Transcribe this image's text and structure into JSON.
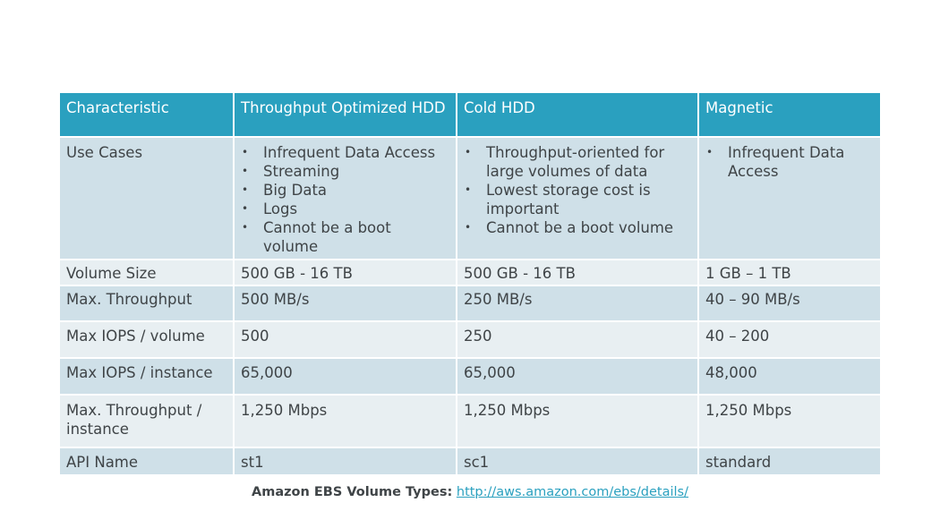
{
  "table": {
    "headers": [
      "Characteristic",
      "Throughput Optimized HDD",
      "Cold HDD",
      "Magnetic"
    ],
    "use_cases": {
      "label": "Use Cases",
      "throughput_optimized": [
        "Infrequent Data Access",
        "Streaming",
        "Big Data",
        "Logs",
        "Cannot be a boot volume"
      ],
      "cold_hdd": [
        "Throughput-oriented for large volumes of data",
        "Lowest storage cost is important",
        "Cannot be a boot volume"
      ],
      "magnetic": [
        "Infrequent Data Access"
      ]
    },
    "rows": [
      {
        "label": "Volume Size",
        "values": [
          "500 GB - 16 TB",
          "500 GB - 16 TB",
          "1 GB – 1 TB"
        ]
      },
      {
        "label": "Max. Throughput",
        "values": [
          "500 MB/s",
          "250 MB/s",
          "40 – 90 MB/s"
        ]
      },
      {
        "label": "Max IOPS / volume",
        "values": [
          "500",
          "250",
          "40 – 200"
        ]
      },
      {
        "label": "Max IOPS / instance",
        "values": [
          "65,000",
          "65,000",
          "48,000"
        ]
      },
      {
        "label": "Max. Throughput / instance",
        "values": [
          "1,250 Mbps",
          "1,250 Mbps",
          "1,250 Mbps"
        ]
      },
      {
        "label": "API Name",
        "values": [
          "st1",
          "sc1",
          "standard"
        ]
      }
    ]
  },
  "caption": {
    "lead": "Amazon EBS Volume Types:",
    "link": "http://aws.amazon.com/ebs/details/"
  }
}
